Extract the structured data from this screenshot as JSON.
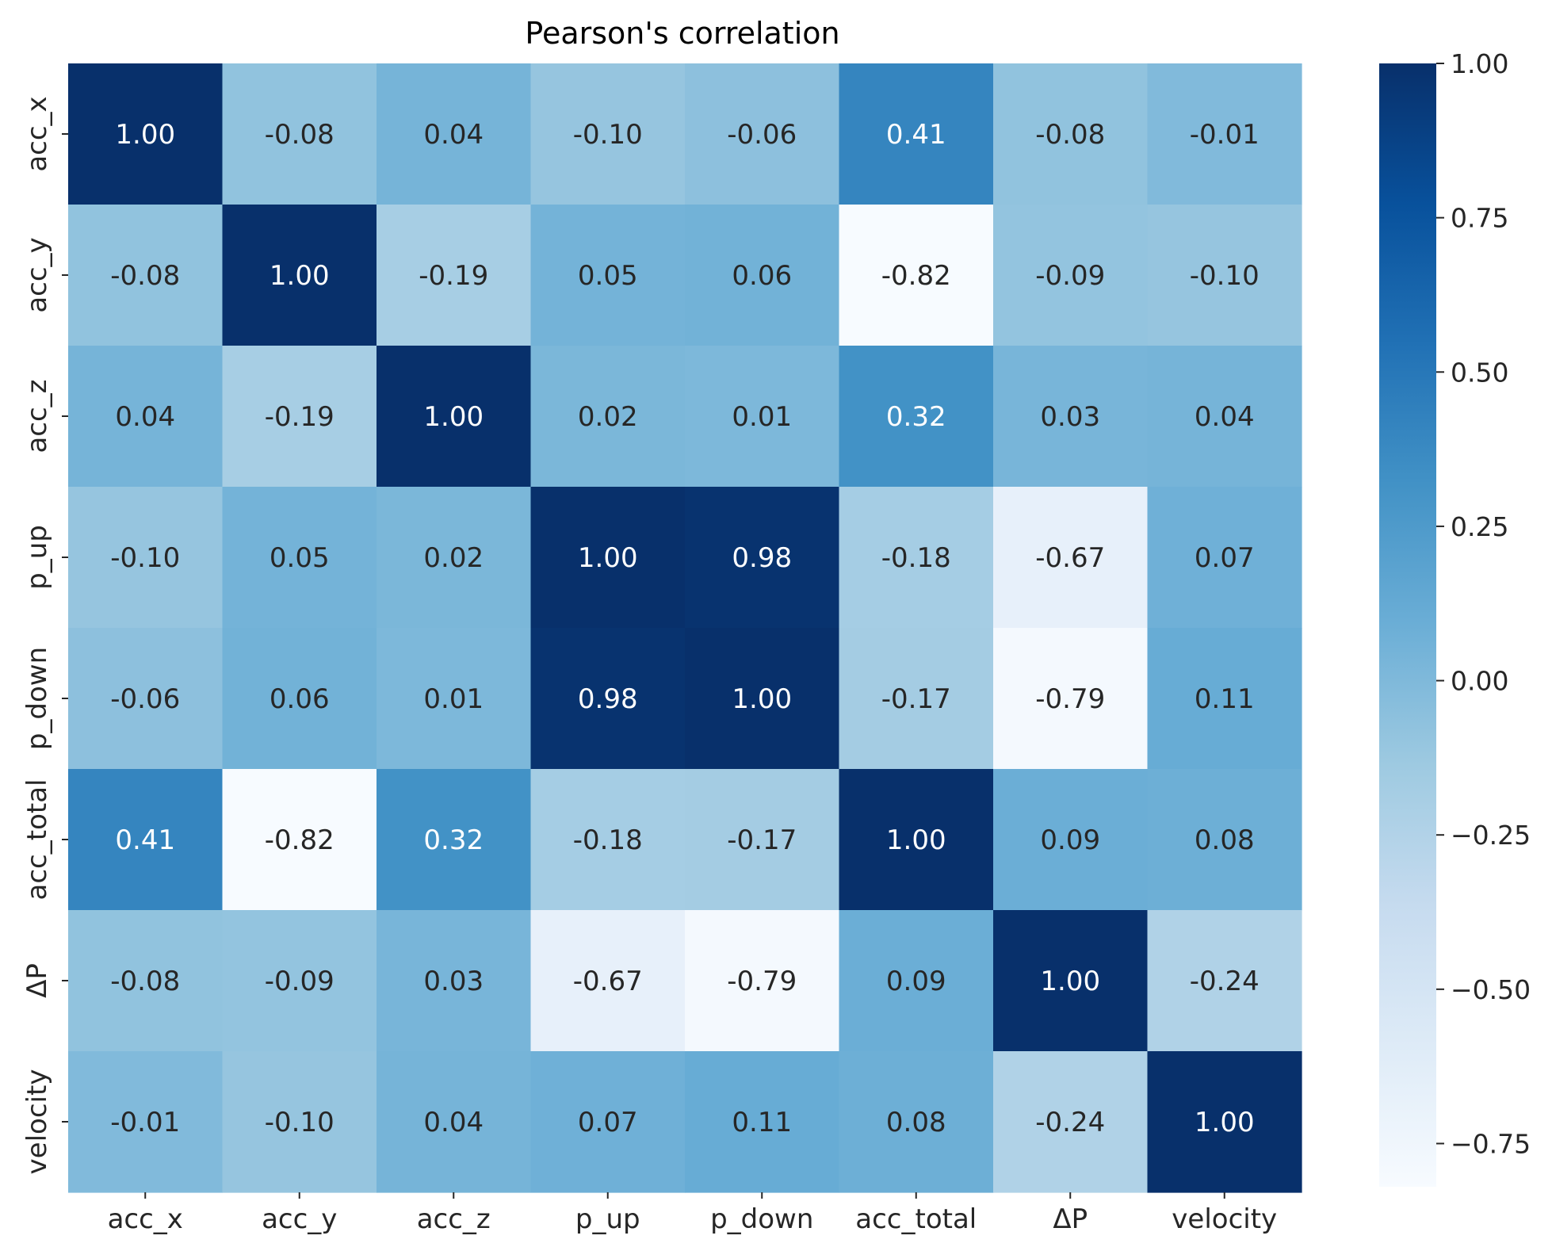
{
  "chart_data": {
    "type": "heatmap",
    "title": "Pearson's correlation",
    "xlabel": "",
    "ylabel": "",
    "row_labels": [
      "acc_x",
      "acc_y",
      "acc_z",
      "p_up",
      "p_down",
      "acc_total",
      "ΔP",
      "velocity"
    ],
    "col_labels": [
      "acc_x",
      "acc_y",
      "acc_z",
      "p_up",
      "p_down",
      "acc_total",
      "ΔP",
      "velocity"
    ],
    "values": [
      [
        1.0,
        -0.08,
        0.04,
        -0.1,
        -0.06,
        0.41,
        -0.08,
        -0.01
      ],
      [
        -0.08,
        1.0,
        -0.19,
        0.05,
        0.06,
        -0.82,
        -0.09,
        -0.1
      ],
      [
        0.04,
        -0.19,
        1.0,
        0.02,
        0.01,
        0.32,
        0.03,
        0.04
      ],
      [
        -0.1,
        0.05,
        0.02,
        1.0,
        0.98,
        -0.18,
        -0.67,
        0.07
      ],
      [
        -0.06,
        0.06,
        0.01,
        0.98,
        1.0,
        -0.17,
        -0.79,
        0.11
      ],
      [
        0.41,
        -0.82,
        0.32,
        -0.18,
        -0.17,
        1.0,
        0.09,
        0.08
      ],
      [
        -0.08,
        -0.09,
        0.03,
        -0.67,
        -0.79,
        0.09,
        1.0,
        -0.24
      ],
      [
        -0.01,
        -0.1,
        0.04,
        0.07,
        0.11,
        0.08,
        -0.24,
        1.0
      ]
    ],
    "value_format": "2 decimals",
    "colormap": "Blues",
    "color_range": [
      -0.82,
      1.0
    ],
    "colorbar": {
      "ticks": [
        1.0,
        0.75,
        0.5,
        0.25,
        0.0,
        -0.25,
        -0.5,
        -0.75
      ],
      "tick_labels": [
        "1.00",
        "0.75",
        "0.50",
        "0.25",
        "0.00",
        "−0.25",
        "−0.50",
        "−0.75"
      ]
    },
    "colors": {
      "low": "#f7fbff",
      "high": "#08306b",
      "text_dark": "#262626",
      "text_light": "#ffffff"
    }
  }
}
